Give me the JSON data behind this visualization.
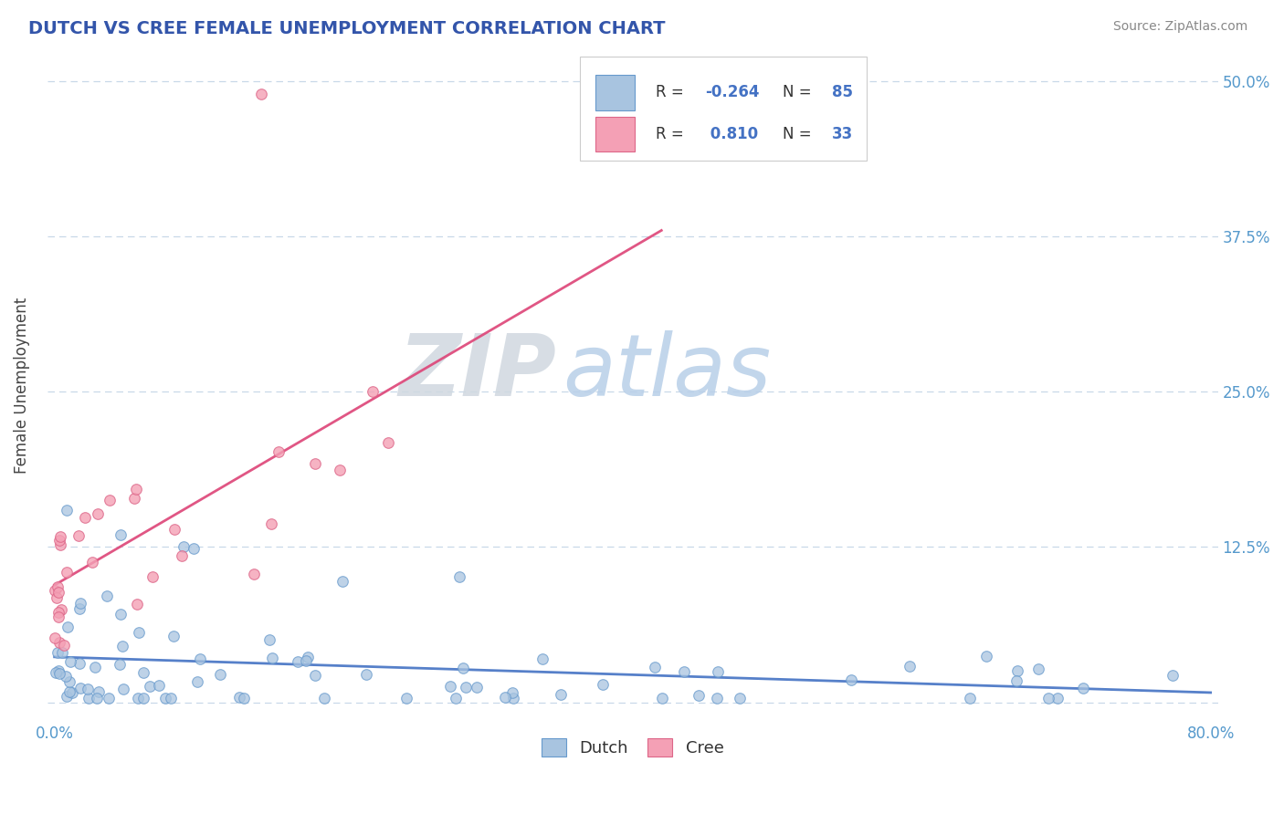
{
  "title": "DUTCH VS CREE FEMALE UNEMPLOYMENT CORRELATION CHART",
  "source": "Source: ZipAtlas.com",
  "ylabel": "Female Unemployment",
  "xlim": [
    -0.005,
    0.805
  ],
  "ylim": [
    -0.015,
    0.525
  ],
  "xtick_positions": [
    0.0,
    0.1,
    0.2,
    0.3,
    0.4,
    0.5,
    0.6,
    0.7,
    0.8
  ],
  "xticklabels": [
    "0.0%",
    "",
    "",
    "",
    "",
    "",
    "",
    "",
    "80.0%"
  ],
  "ytick_positions": [
    0.0,
    0.125,
    0.25,
    0.375,
    0.5
  ],
  "ytick_labels": [
    "",
    "12.5%",
    "25.0%",
    "37.5%",
    "50.0%"
  ],
  "dutch_color": "#a8c4e0",
  "dutch_edge_color": "#6699cc",
  "cree_color": "#f4a0b5",
  "cree_edge_color": "#dd6688",
  "dutch_line_color": "#4472c4",
  "cree_line_color": "#dd4477",
  "dutch_R": -0.264,
  "dutch_N": 85,
  "cree_R": 0.81,
  "cree_N": 33,
  "background_color": "#ffffff",
  "grid_color": "#c8d8e8",
  "watermark_zip": "ZIP",
  "watermark_atlas": "atlas",
  "legend_entry1": "Dutch",
  "legend_entry2": "Cree",
  "title_color": "#3355aa",
  "axis_label_color": "#444444",
  "tick_label_color": "#5599cc",
  "source_color": "#888888",
  "legend_text_color": "#333333",
  "legend_value_color": "#4472c4"
}
